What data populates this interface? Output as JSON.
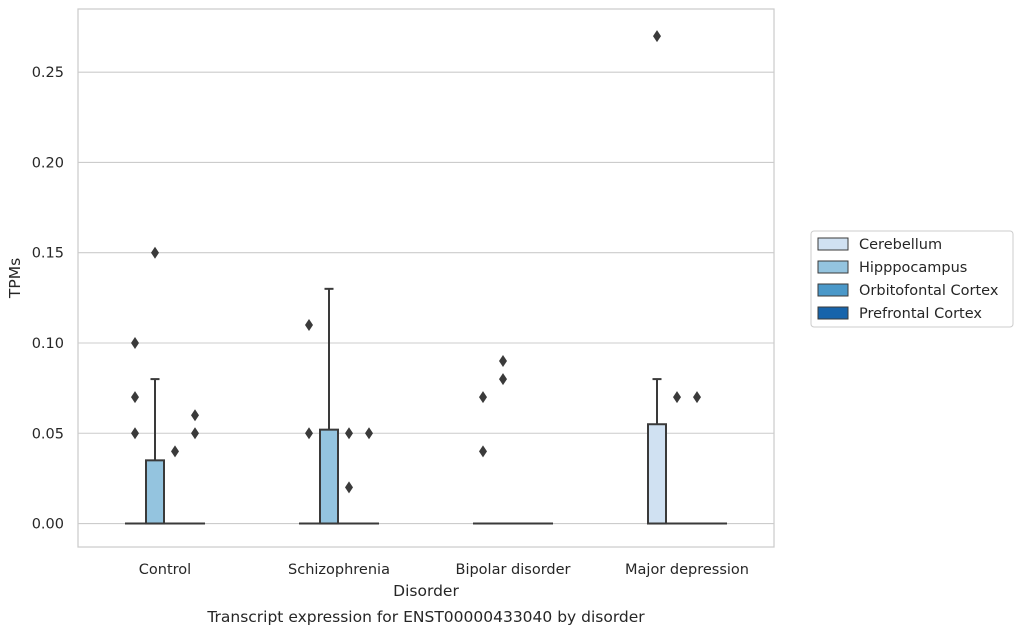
{
  "chart_data": {
    "type": "box",
    "caption": "Transcript expression for ENST00000433040 by disorder",
    "xlabel": "Disorder",
    "ylabel": "TPMs",
    "ylim": [
      -0.013,
      0.285
    ],
    "yticks": [
      0.0,
      0.05,
      0.1,
      0.15,
      0.2,
      0.25
    ],
    "ytick_labels": [
      "0.00",
      "0.05",
      "0.10",
      "0.15",
      "0.20",
      "0.25"
    ],
    "grid": "horizontal",
    "legend_placement": "center-right-outside",
    "categories": [
      "Control",
      "Schizophrenia",
      "Bipolar disorder",
      "Major depression"
    ],
    "series": [
      {
        "name": "Cerebellum",
        "color": "#d0e1f2",
        "boxes": [
          {
            "category": "Control",
            "q1": 0.0,
            "median": 0.0,
            "q3": 0.0,
            "whisker_low": 0.0,
            "whisker_high": 0.0,
            "outliers": [
              0.05,
              0.07,
              0.1
            ]
          },
          {
            "category": "Schizophrenia",
            "q1": 0.0,
            "median": 0.0,
            "q3": 0.0,
            "whisker_low": 0.0,
            "whisker_high": 0.0,
            "outliers": [
              0.05,
              0.11
            ]
          },
          {
            "category": "Bipolar disorder",
            "q1": 0.0,
            "median": 0.0,
            "q3": 0.0,
            "whisker_low": 0.0,
            "whisker_high": 0.0,
            "outliers": [
              0.04,
              0.07
            ]
          },
          {
            "category": "Major depression",
            "q1": 0.0,
            "median": 0.0,
            "q3": 0.055,
            "whisker_low": 0.0,
            "whisker_high": 0.08,
            "outliers": [
              0.27
            ]
          }
        ]
      },
      {
        "name": "Hipppocampus",
        "color": "#94c4df",
        "boxes": [
          {
            "category": "Control",
            "q1": 0.0,
            "median": 0.0,
            "q3": 0.035,
            "whisker_low": 0.0,
            "whisker_high": 0.08,
            "outliers": [
              0.15
            ]
          },
          {
            "category": "Schizophrenia",
            "q1": 0.0,
            "median": 0.0,
            "q3": 0.052,
            "whisker_low": 0.0,
            "whisker_high": 0.13,
            "outliers": []
          },
          {
            "category": "Bipolar disorder",
            "q1": 0.0,
            "median": 0.0,
            "q3": 0.0,
            "whisker_low": 0.0,
            "whisker_high": 0.0,
            "outliers": [
              0.08,
              0.09
            ]
          },
          {
            "category": "Major depression",
            "q1": 0.0,
            "median": 0.0,
            "q3": 0.0,
            "whisker_low": 0.0,
            "whisker_high": 0.0,
            "outliers": [
              0.07
            ]
          }
        ]
      },
      {
        "name": "Orbitofontal Cortex",
        "color": "#4a98c9",
        "boxes": [
          {
            "category": "Control",
            "q1": 0.0,
            "median": 0.0,
            "q3": 0.0,
            "whisker_low": 0.0,
            "whisker_high": 0.0,
            "outliers": [
              0.04
            ]
          },
          {
            "category": "Schizophrenia",
            "q1": 0.0,
            "median": 0.0,
            "q3": 0.0,
            "whisker_low": 0.0,
            "whisker_high": 0.0,
            "outliers": [
              0.02,
              0.05
            ]
          },
          {
            "category": "Bipolar disorder",
            "q1": 0.0,
            "median": 0.0,
            "q3": 0.0,
            "whisker_low": 0.0,
            "whisker_high": 0.0,
            "outliers": []
          },
          {
            "category": "Major depression",
            "q1": 0.0,
            "median": 0.0,
            "q3": 0.0,
            "whisker_low": 0.0,
            "whisker_high": 0.0,
            "outliers": [
              0.07
            ]
          }
        ]
      },
      {
        "name": "Prefrontal Cortex",
        "color": "#1764ab",
        "boxes": [
          {
            "category": "Control",
            "q1": 0.0,
            "median": 0.0,
            "q3": 0.0,
            "whisker_low": 0.0,
            "whisker_high": 0.0,
            "outliers": [
              0.05,
              0.06
            ]
          },
          {
            "category": "Schizophrenia",
            "q1": 0.0,
            "median": 0.0,
            "q3": 0.0,
            "whisker_low": 0.0,
            "whisker_high": 0.0,
            "outliers": [
              0.05
            ]
          },
          {
            "category": "Bipolar disorder",
            "q1": 0.0,
            "median": 0.0,
            "q3": 0.0,
            "whisker_low": 0.0,
            "whisker_high": 0.0,
            "outliers": []
          },
          {
            "category": "Major depression",
            "q1": 0.0,
            "median": 0.0,
            "q3": 0.0,
            "whisker_low": 0.0,
            "whisker_high": 0.0,
            "outliers": []
          }
        ]
      }
    ]
  }
}
